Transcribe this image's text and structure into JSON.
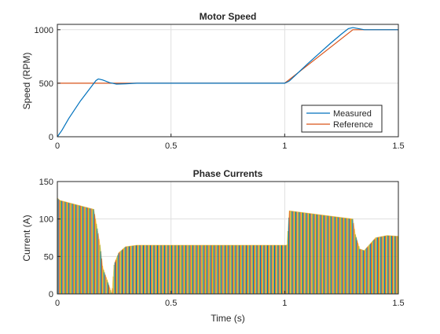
{
  "colors": {
    "measured": "#0072BD",
    "reference": "#D95319",
    "phase_a": "#0072BD",
    "phase_b": "#D95319",
    "phase_c": "#EDB120",
    "phase_d": "#77AC30"
  },
  "chart_data": [
    {
      "type": "line",
      "title": "Motor Speed",
      "xlabel": "",
      "ylabel": "Speed (RPM)",
      "xlim": [
        0,
        1.5
      ],
      "ylim": [
        0,
        1050
      ],
      "xticks": [
        0,
        0.5,
        1,
        1.5
      ],
      "xtick_labels": [
        "0",
        "0.5",
        "1",
        "1.5"
      ],
      "yticks": [
        0,
        500,
        1000
      ],
      "ytick_labels": [
        "0",
        "500",
        "1000"
      ],
      "grid": true,
      "legend_position": "bottom-right",
      "series": [
        {
          "name": "Measured",
          "x": [
            0,
            0.02,
            0.05,
            0.1,
            0.15,
            0.17,
            0.18,
            0.2,
            0.23,
            0.26,
            0.3,
            0.35,
            0.4,
            0.6,
            0.8,
            1.0,
            1.02,
            1.05,
            1.1,
            1.15,
            1.2,
            1.25,
            1.28,
            1.3,
            1.32,
            1.35,
            1.4,
            1.5
          ],
          "y": [
            0,
            60,
            170,
            330,
            470,
            525,
            540,
            530,
            505,
            492,
            495,
            500,
            500,
            500,
            500,
            500,
            520,
            580,
            680,
            775,
            870,
            960,
            1010,
            1020,
            1012,
            1000,
            1000,
            1000
          ]
        },
        {
          "name": "Reference",
          "x": [
            0,
            0.001,
            1.0,
            1.3,
            1.5
          ],
          "y": [
            500,
            500,
            500,
            1000,
            1000
          ]
        }
      ]
    },
    {
      "type": "line",
      "title": "Phase Currents",
      "xlabel": "Time (s)",
      "ylabel": "Current (A)",
      "xlim": [
        0,
        1.5
      ],
      "ylim": [
        0,
        150
      ],
      "xticks": [
        0,
        0.5,
        1,
        1.5
      ],
      "xtick_labels": [
        "0",
        "0.5",
        "1",
        "1.5"
      ],
      "yticks": [
        0,
        50,
        100,
        150
      ],
      "ytick_labels": [
        "0",
        "50",
        "100",
        "150"
      ],
      "grid": true,
      "envelope": {
        "x": [
          0,
          0.01,
          0.16,
          0.18,
          0.19,
          0.2,
          0.24,
          0.25,
          0.27,
          0.3,
          0.35,
          1.0,
          1.01,
          1.02,
          1.3,
          1.31,
          1.33,
          1.35,
          1.4,
          1.45,
          1.5
        ],
        "y": [
          128,
          125,
          113,
          80,
          60,
          35,
          0,
          40,
          55,
          63,
          65,
          65,
          65,
          111,
          100,
          80,
          60,
          58,
          75,
          78,
          77
        ]
      }
    }
  ]
}
